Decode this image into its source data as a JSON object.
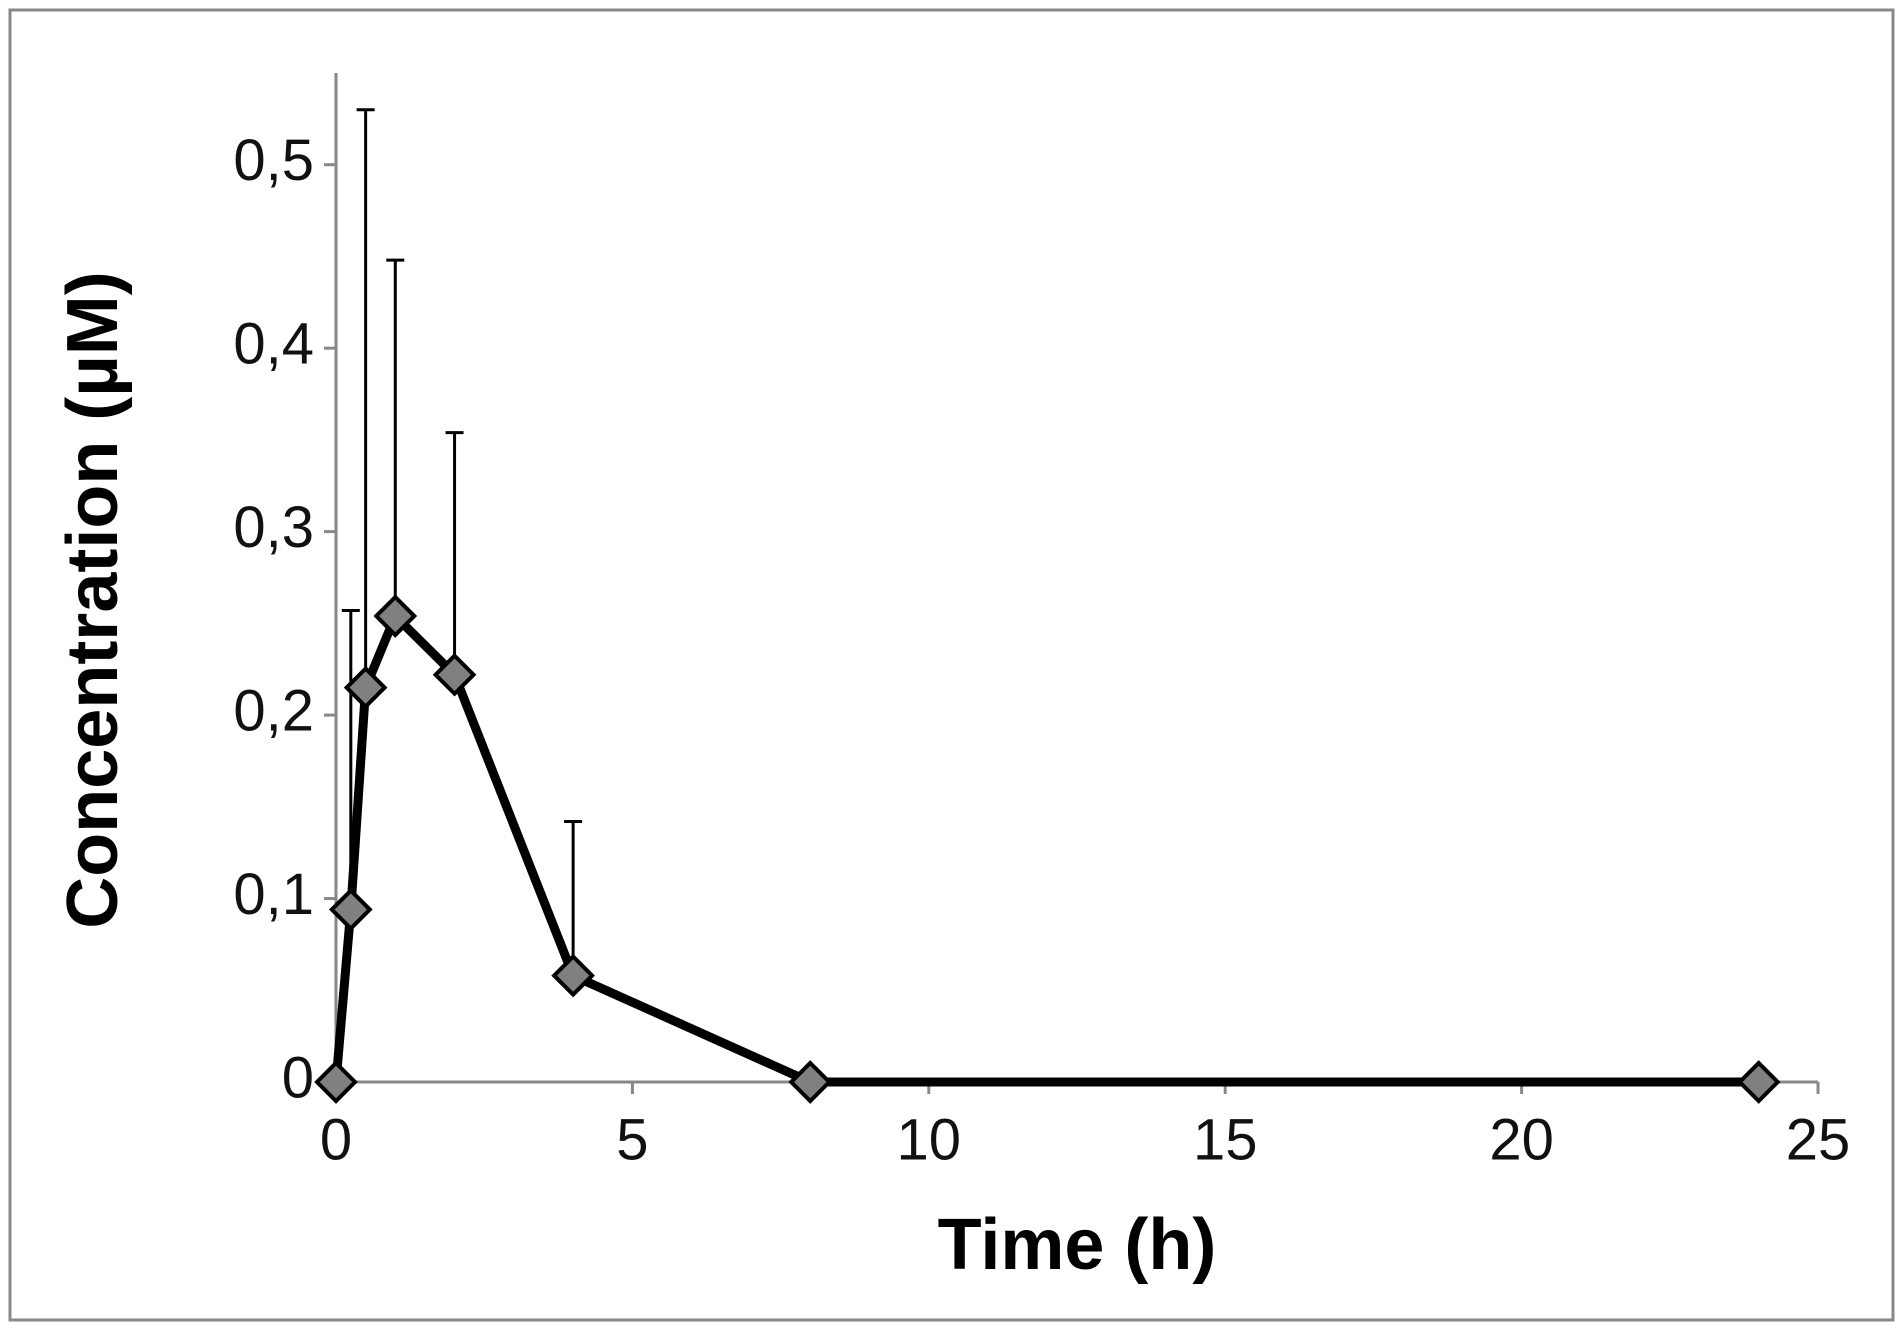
{
  "chart_data": {
    "type": "line",
    "x_label": "Time (h)",
    "y_label": "Concentration (µM)",
    "x": [
      0,
      0.25,
      0.5,
      1,
      2,
      4,
      8,
      24
    ],
    "values": [
      0,
      0.094,
      0.215,
      0.254,
      0.222,
      0.058,
      0,
      0
    ],
    "errors": [
      null,
      0.163,
      0.315,
      0.194,
      0.132,
      0.084,
      null,
      null
    ],
    "line_color": "#000000",
    "marker_color": "#808080",
    "xlim": [
      0,
      25
    ],
    "xticks": [
      0,
      5,
      10,
      15,
      20,
      25
    ],
    "ylim": [
      0,
      0.55
    ],
    "yticks": [
      0,
      {
        "value": 0.1,
        "label": "0,1"
      },
      {
        "value": 0.2,
        "label": "0,2"
      },
      {
        "value": 0.3,
        "label": "0,3"
      },
      {
        "value": 0.4,
        "label": "0,4"
      },
      {
        "value": 0.5,
        "label": "0,5"
      }
    ]
  }
}
